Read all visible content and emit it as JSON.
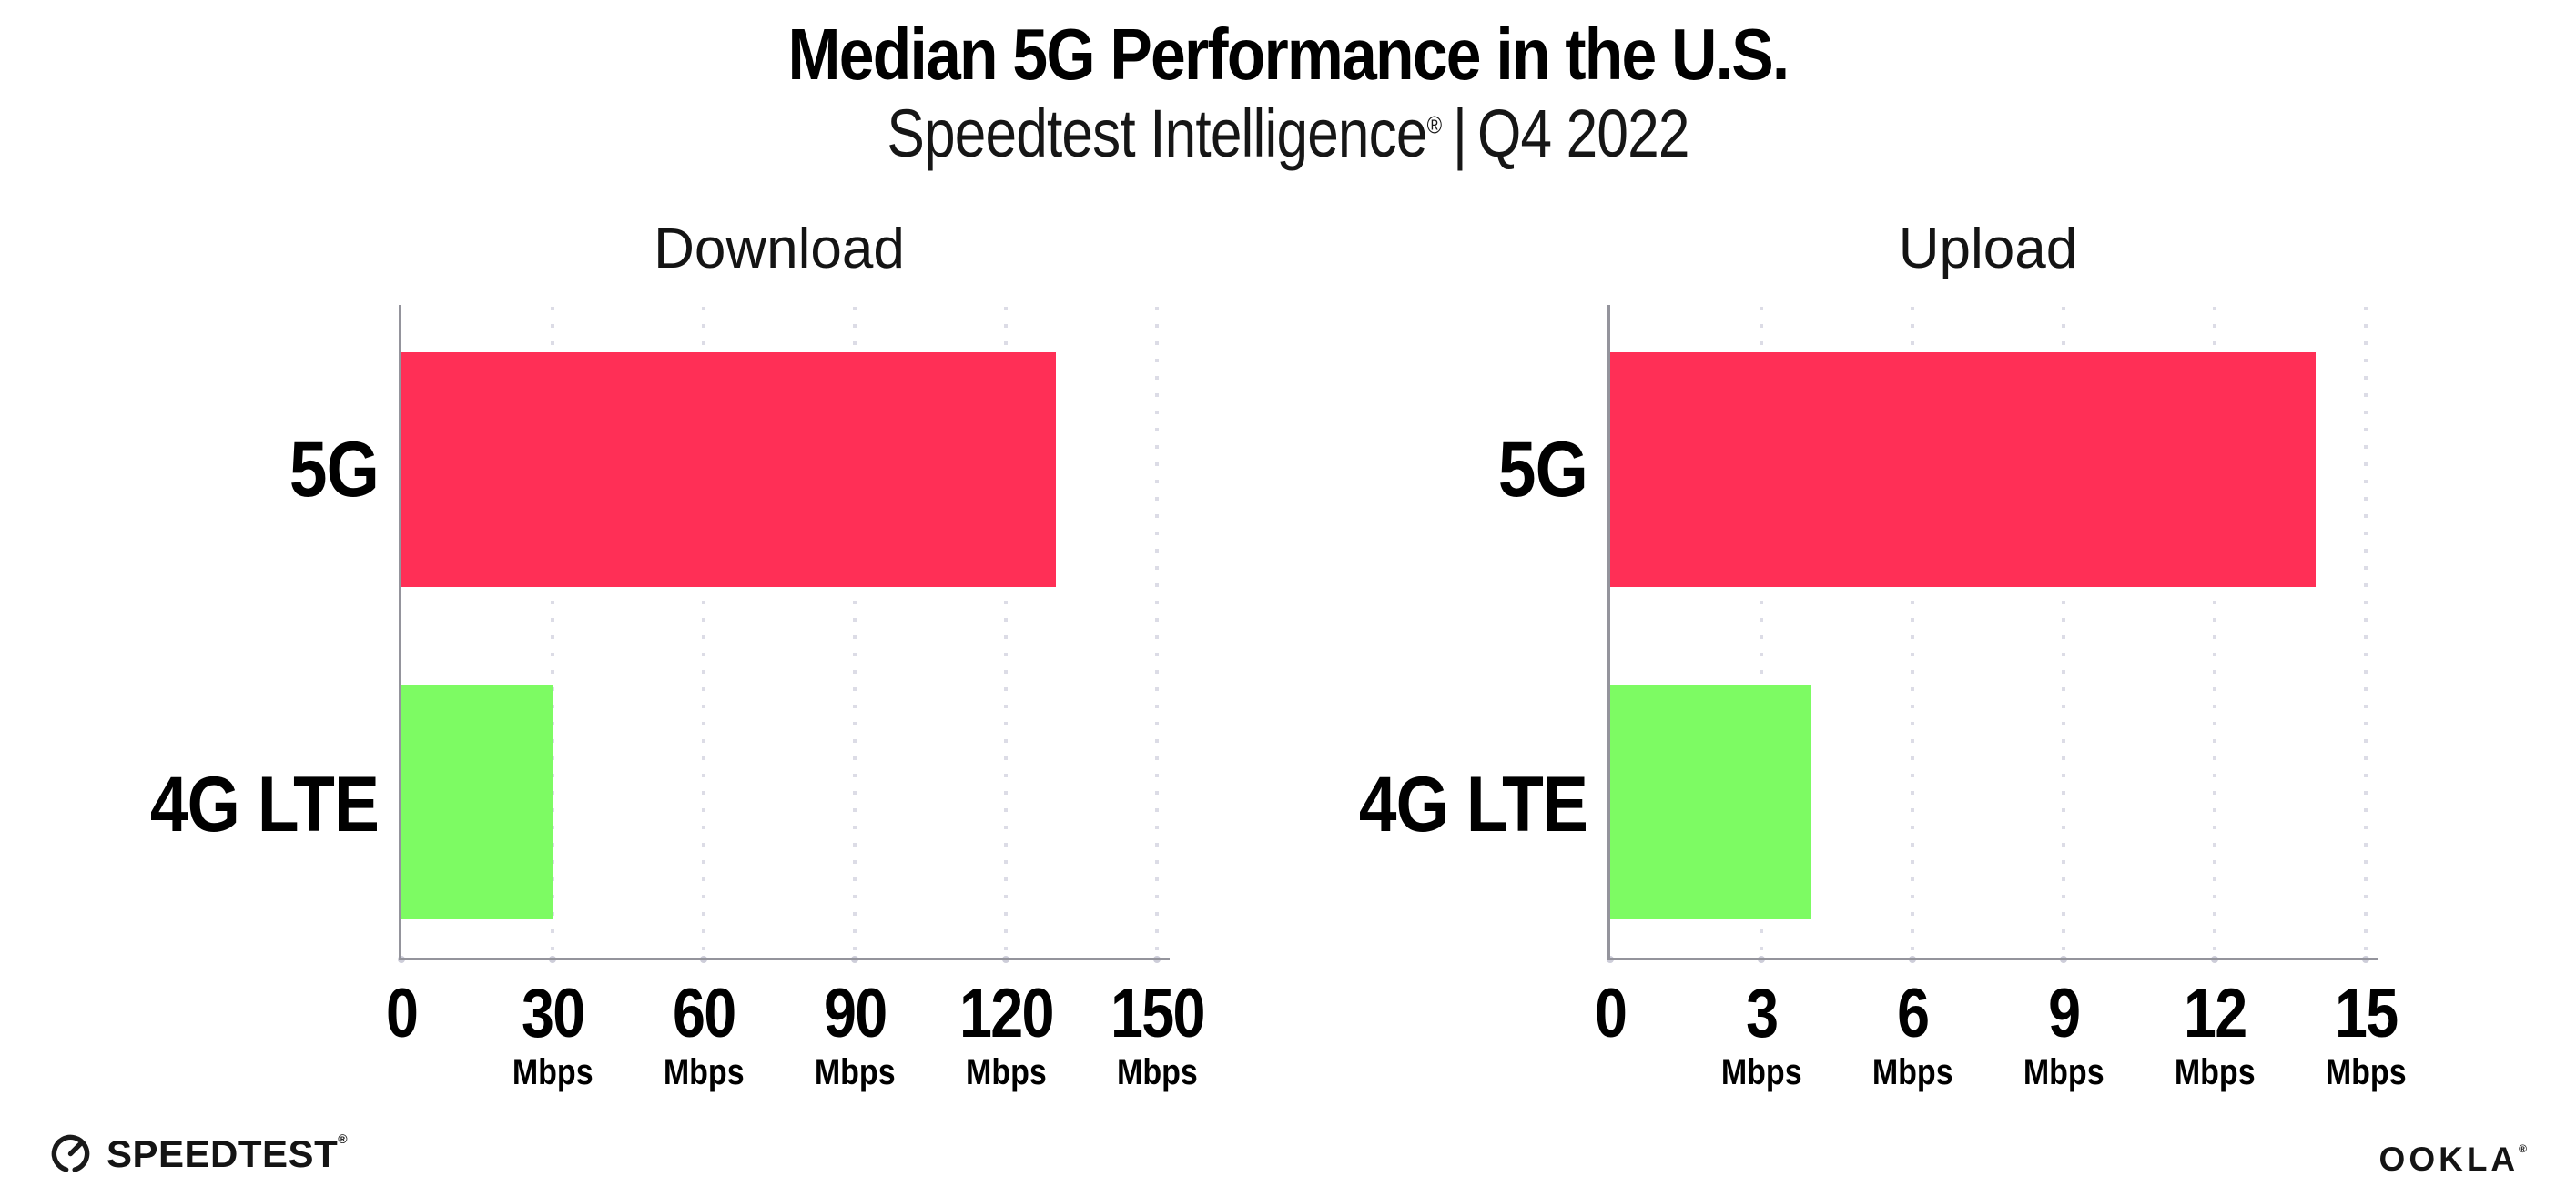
{
  "header": {
    "title": "Median 5G Performance in the U.S.",
    "subtitle_brand": "Speedtest Intelligence",
    "subtitle_reg": "®",
    "subtitle_sep": "|",
    "subtitle_period": "Q4 2022"
  },
  "chart_data": [
    {
      "type": "bar",
      "orientation": "horizontal",
      "title": "Download",
      "categories": [
        "5G",
        "4G LTE"
      ],
      "values": [
        130,
        30
      ],
      "unit": "Mbps",
      "xlim": [
        0,
        150
      ],
      "xticks": [
        0,
        30,
        60,
        90,
        120,
        150
      ],
      "ticks": [
        {
          "value": 0,
          "label": "0",
          "unit": ""
        },
        {
          "value": 30,
          "label": "30",
          "unit": "Mbps"
        },
        {
          "value": 60,
          "label": "60",
          "unit": "Mbps"
        },
        {
          "value": 90,
          "label": "90",
          "unit": "Mbps"
        },
        {
          "value": 120,
          "label": "120",
          "unit": "Mbps"
        },
        {
          "value": 150,
          "label": "150",
          "unit": "Mbps"
        }
      ],
      "colors": [
        "#ff2f56",
        "#7dfb63"
      ],
      "grid": "vertical-dotted",
      "legend": "none"
    },
    {
      "type": "bar",
      "orientation": "horizontal",
      "title": "Upload",
      "categories": [
        "5G",
        "4G LTE"
      ],
      "values": [
        14,
        4
      ],
      "unit": "Mbps",
      "xlim": [
        0,
        15
      ],
      "xticks": [
        0,
        3,
        6,
        9,
        12,
        15
      ],
      "ticks": [
        {
          "value": 0,
          "label": "0",
          "unit": ""
        },
        {
          "value": 3,
          "label": "3",
          "unit": "Mbps"
        },
        {
          "value": 6,
          "label": "6",
          "unit": "Mbps"
        },
        {
          "value": 9,
          "label": "9",
          "unit": "Mbps"
        },
        {
          "value": 12,
          "label": "12",
          "unit": "Mbps"
        },
        {
          "value": 15,
          "label": "15",
          "unit": "Mbps"
        }
      ],
      "colors": [
        "#ff2f56",
        "#7dfb63"
      ],
      "grid": "vertical-dotted",
      "legend": "none"
    }
  ],
  "style_colors": {
    "bar_5g": "#ff2f56",
    "bar_4g_lte": "#7dfb63",
    "axis": "#94949c",
    "gridline": "#dcdce6",
    "background": "#ffffff",
    "text": "#000000"
  },
  "footer": {
    "speedtest_label": "SPEEDTEST",
    "speedtest_reg": "®",
    "ookla_label": "OOKLA",
    "ookla_reg": "®"
  }
}
